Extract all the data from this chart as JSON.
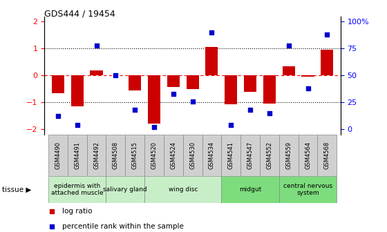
{
  "title": "GDS444 / 19454",
  "samples": [
    "GSM4490",
    "GSM4491",
    "GSM4492",
    "GSM4508",
    "GSM4515",
    "GSM4520",
    "GSM4524",
    "GSM4530",
    "GSM4534",
    "GSM4541",
    "GSM4547",
    "GSM4552",
    "GSM4559",
    "GSM4564",
    "GSM4568"
  ],
  "log_ratios": [
    -0.65,
    -1.15,
    0.18,
    0.0,
    -0.55,
    -1.78,
    -0.42,
    -0.52,
    1.05,
    -1.08,
    -0.62,
    -1.05,
    0.35,
    -0.05,
    0.95
  ],
  "percentile_ranks": [
    12,
    4,
    78,
    50,
    18,
    2,
    33,
    26,
    90,
    4,
    18,
    15,
    78,
    38,
    88
  ],
  "tissue_groups": [
    {
      "label": "epidermis with\nattached muscle",
      "start": 0,
      "end": 3,
      "color": "#c8eec8"
    },
    {
      "label": "salivary gland",
      "start": 3,
      "end": 5,
      "color": "#c8eec8"
    },
    {
      "label": "wing disc",
      "start": 5,
      "end": 9,
      "color": "#c8eec8"
    },
    {
      "label": "midgut",
      "start": 9,
      "end": 12,
      "color": "#7ddc7d"
    },
    {
      "label": "central nervous\nsystem",
      "start": 12,
      "end": 15,
      "color": "#7ddc7d"
    }
  ],
  "bar_color": "#cc0000",
  "dot_color": "#0000cc",
  "left_yticks": [
    -2,
    -1,
    0,
    1,
    2
  ],
  "right_yticks": [
    0,
    25,
    50,
    75,
    100
  ],
  "right_yticklabels": [
    "0",
    "25",
    "50",
    "75",
    "100%"
  ],
  "legend_log_label": "log ratio",
  "legend_pct_label": "percentile rank within the sample",
  "cell_color": "#d0d0d0",
  "cell_edge_color": "#888888"
}
